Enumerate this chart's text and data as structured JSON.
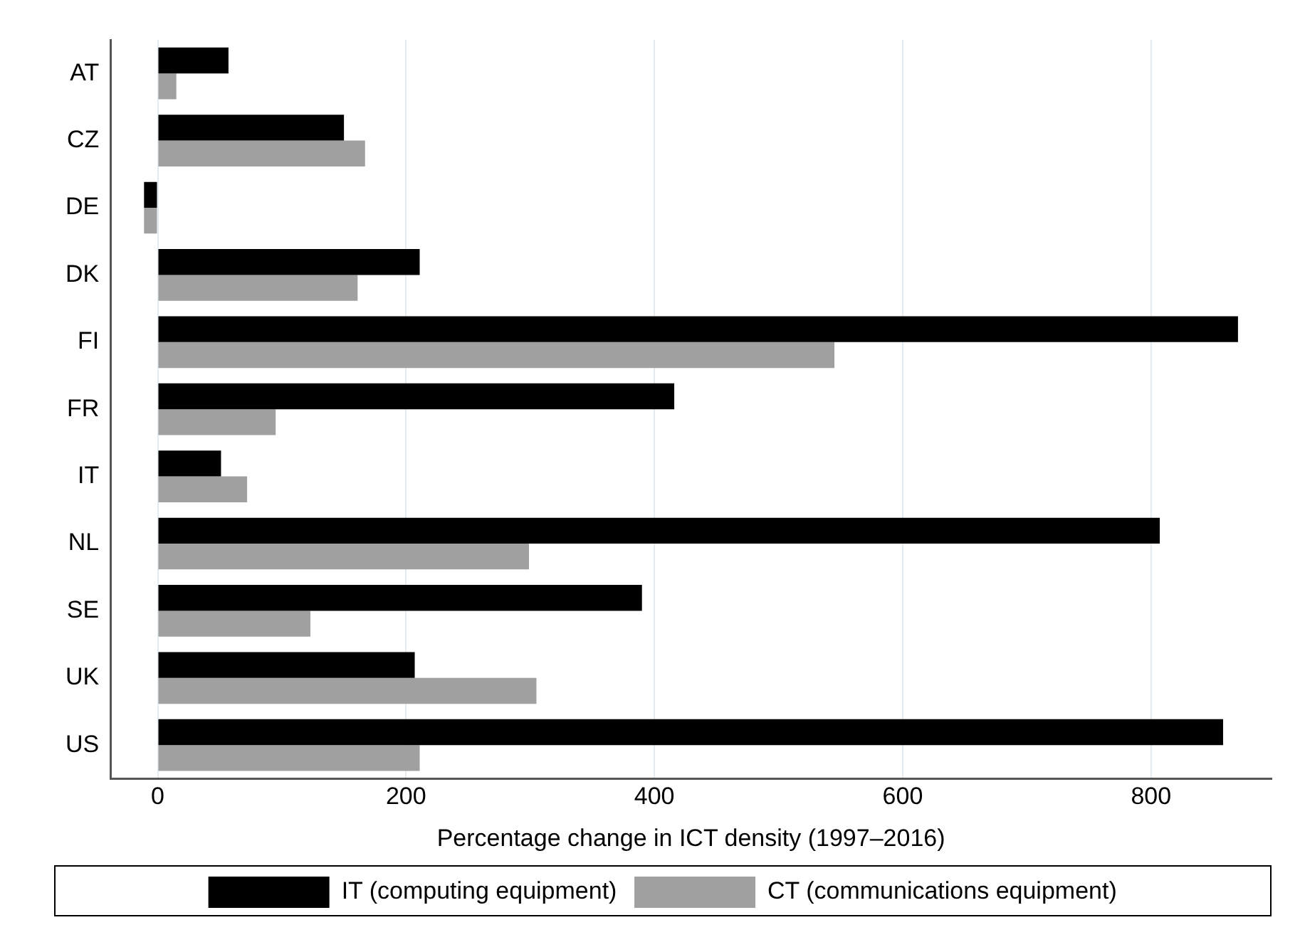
{
  "chart_data": {
    "type": "bar",
    "orientation": "horizontal",
    "xlabel": "Percentage change in ICT density (1997–2016)",
    "categories": [
      "AT",
      "CZ",
      "DE",
      "DK",
      "FI",
      "FR",
      "IT",
      "NL",
      "SE",
      "UK",
      "US"
    ],
    "series": [
      {
        "name": "IT (computing equipment)",
        "color": "#000000",
        "values": [
          57,
          150,
          -11,
          211,
          870,
          416,
          51,
          807,
          390,
          207,
          858
        ]
      },
      {
        "name": "CT (communications equipment)",
        "color": "#a0a0a0",
        "values": [
          15,
          167,
          -11,
          161,
          545,
          95,
          72,
          299,
          123,
          305,
          211
        ]
      }
    ],
    "xlim": [
      -38,
      897
    ],
    "xticks": [
      0,
      200,
      400,
      600,
      800
    ],
    "grid": "x",
    "legend": "bottom"
  }
}
